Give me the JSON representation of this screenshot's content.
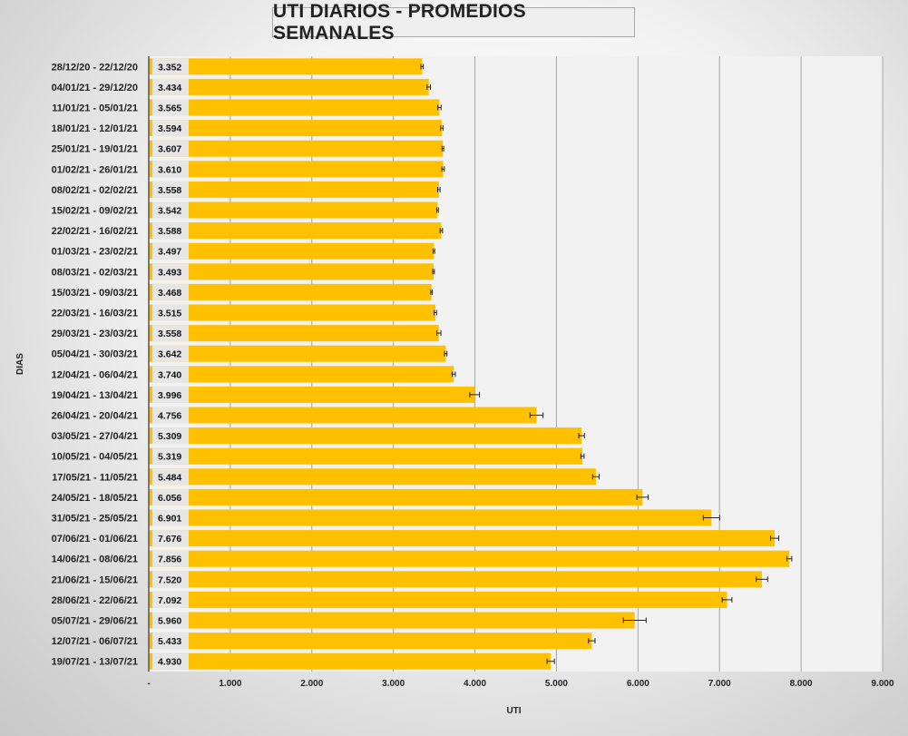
{
  "chart_data": {
    "type": "bar",
    "orientation": "horizontal",
    "title": "UTI DIARIOS - PROMEDIOS SEMANALES",
    "xlabel": "UTI",
    "ylabel": "DIAS",
    "xlim": [
      0,
      9000
    ],
    "xticks": [
      0,
      1000,
      2000,
      3000,
      4000,
      5000,
      6000,
      7000,
      8000,
      9000
    ],
    "xtick_labels": [
      "-",
      "1.000",
      "2.000",
      "3.000",
      "4.000",
      "5.000",
      "6.000",
      "7.000",
      "8.000",
      "9.000"
    ],
    "grid": "vertical",
    "error_bars": true,
    "bar_color": "#ffc000",
    "categories": [
      "28/12/20 - 22/12/20",
      "04/01/21 - 29/12/20",
      "11/01/21 - 05/01/21",
      "18/01/21 - 12/01/21",
      "25/01/21 - 19/01/21",
      "01/02/21 - 26/01/21",
      "08/02/21 - 02/02/21",
      "15/02/21 - 09/02/21",
      "22/02/21 - 16/02/21",
      "01/03/21 - 23/02/21",
      "08/03/21 - 02/03/21",
      "15/03/21 - 09/03/21",
      "22/03/21 - 16/03/21",
      "29/03/21 - 23/03/21",
      "05/04/21 - 30/03/21",
      "12/04/21 - 06/04/21",
      "19/04/21 - 13/04/21",
      "26/04/21 - 20/04/21",
      "03/05/21 - 27/04/21",
      "10/05/21 - 04/05/21",
      "17/05/21 - 11/05/21",
      "24/05/21 - 18/05/21",
      "31/05/21 - 25/05/21",
      "07/06/21 - 01/06/21",
      "14/06/21 - 08/06/21",
      "21/06/21 - 15/06/21",
      "28/06/21 - 22/06/21",
      "05/07/21 - 29/06/21",
      "12/07/21 - 06/07/21",
      "19/07/21 - 13/07/21"
    ],
    "values": [
      3352,
      3434,
      3565,
      3594,
      3607,
      3610,
      3558,
      3542,
      3588,
      3497,
      3493,
      3468,
      3515,
      3558,
      3642,
      3740,
      3996,
      4756,
      5309,
      5319,
      5484,
      6056,
      6901,
      7676,
      7856,
      7520,
      7092,
      5960,
      5433,
      4930
    ],
    "value_labels": [
      "3.352",
      "3.434",
      "3.565",
      "3.594",
      "3.607",
      "3.610",
      "3.558",
      "3.542",
      "3.588",
      "3.497",
      "3.493",
      "3.468",
      "3.515",
      "3.558",
      "3.642",
      "3.740",
      "3.996",
      "4.756",
      "5.309",
      "5.319",
      "5.484",
      "6.056",
      "6.901",
      "7.676",
      "7.856",
      "7.520",
      "7.092",
      "5.960",
      "5.433",
      "4.930"
    ],
    "errors": [
      15,
      20,
      20,
      15,
      10,
      15,
      15,
      10,
      15,
      10,
      10,
      10,
      15,
      25,
      15,
      20,
      60,
      80,
      35,
      20,
      40,
      70,
      100,
      50,
      30,
      70,
      60,
      140,
      40,
      45
    ]
  }
}
